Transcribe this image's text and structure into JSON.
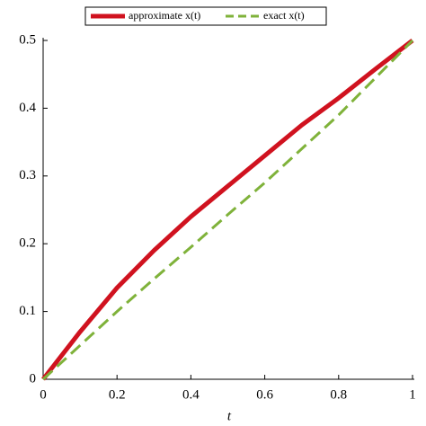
{
  "chart_data": {
    "type": "line",
    "x_label": "t",
    "x": [
      0,
      0.1,
      0.2,
      0.3,
      0.4,
      0.5,
      0.6,
      0.7,
      0.8,
      0.9,
      1
    ],
    "series": [
      {
        "name": "approximate x(t)",
        "color": "#d0121f",
        "style": "solid",
        "values": [
          0,
          0.07,
          0.135,
          0.19,
          0.24,
          0.285,
          0.33,
          0.375,
          0.415,
          0.458,
          0.5
        ]
      },
      {
        "name": "exact x(t)",
        "color": "#7fb23a",
        "style": "dashed",
        "values": [
          0,
          0.05,
          0.1,
          0.148,
          0.195,
          0.243,
          0.29,
          0.34,
          0.39,
          0.445,
          0.5
        ]
      }
    ],
    "xlim": [
      0,
      1
    ],
    "xticks": [
      0,
      0.2,
      0.4,
      0.6,
      0.8,
      1
    ],
    "ylim": [
      0,
      0.5
    ],
    "yticks": [
      0,
      0.1,
      0.2,
      0.3,
      0.4,
      0.5
    ],
    "grid": false,
    "legend": "top"
  }
}
